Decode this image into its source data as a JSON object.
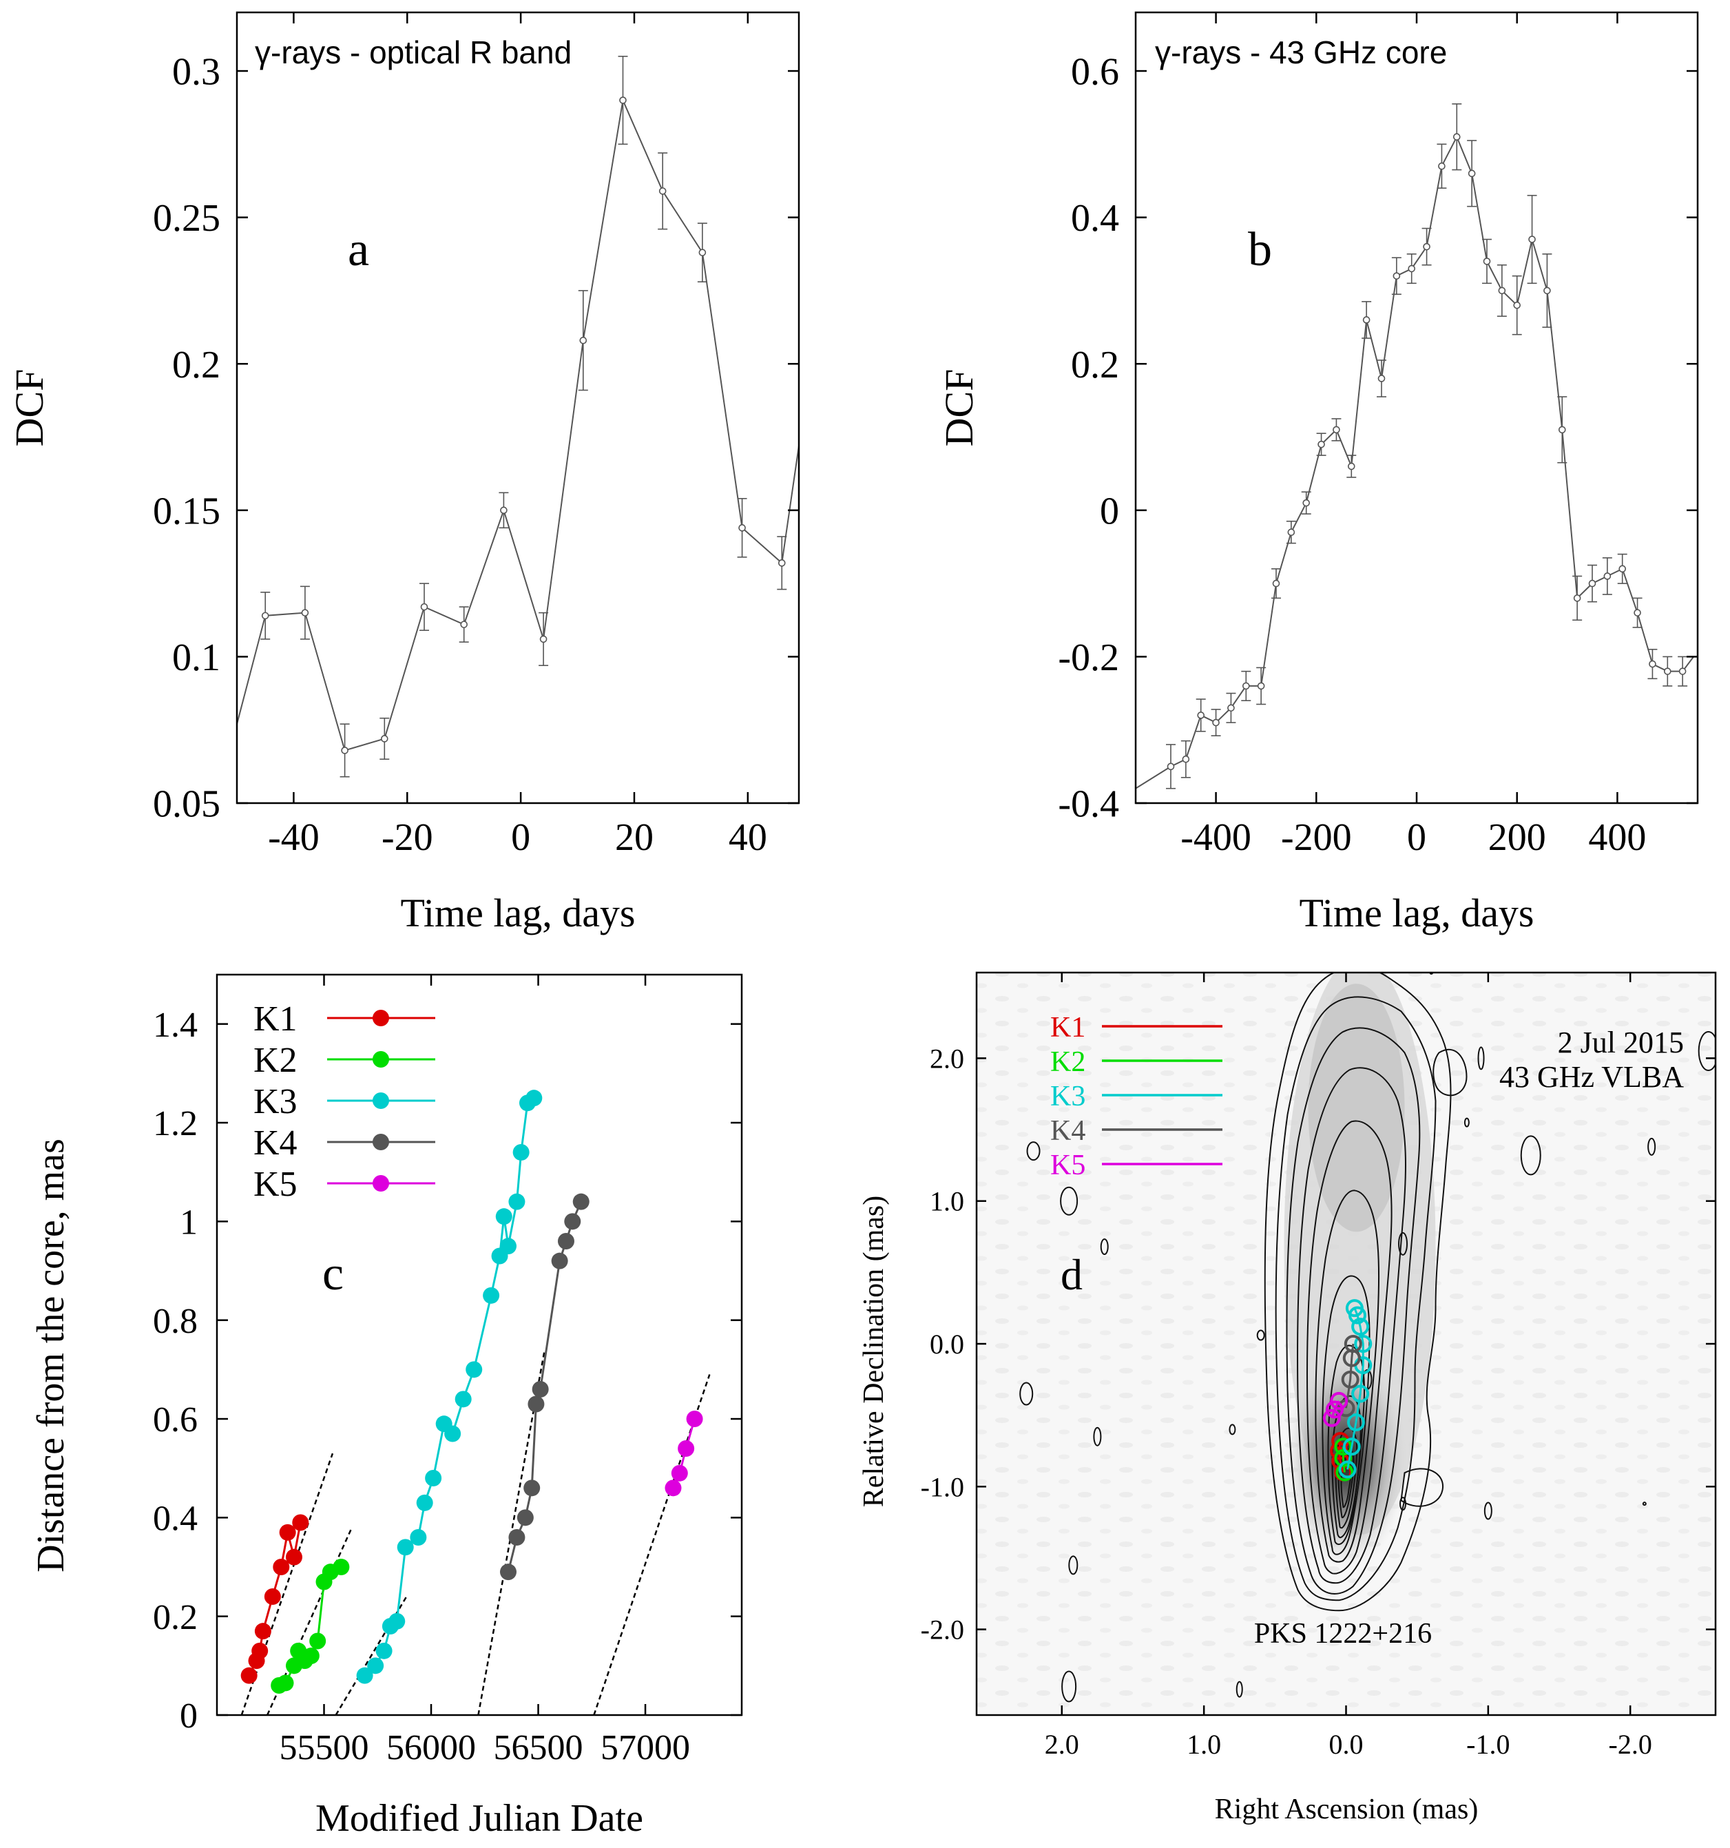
{
  "chart_data": [
    {
      "id": "a",
      "type": "line",
      "panel_letter": "a",
      "annotation": "γ-rays - optical R band",
      "xlabel": "Time lag, days",
      "ylabel": "DCF",
      "xlim": [
        -50,
        49
      ],
      "ylim": [
        0.05,
        0.32
      ],
      "xticks": [
        -40,
        -20,
        0,
        20,
        40
      ],
      "xtick_labels": [
        "-40",
        "-20",
        "0",
        "20",
        "40"
      ],
      "yticks": [
        0.05,
        0.1,
        0.15,
        0.2,
        0.25,
        0.3
      ],
      "ytick_labels": [
        "0.05",
        "0.1",
        "0.15",
        "0.2",
        "0.25",
        "0.3"
      ],
      "color": "#555555",
      "line_extension": {
        "start": [
          -50,
          0.077
        ],
        "end": [
          49,
          0.172
        ]
      },
      "x": [
        -45.0,
        -38.0,
        -31.0,
        -24.0,
        -17.0,
        -10.0,
        -3.0,
        4.0,
        11.0,
        18.0,
        25.0,
        32.0,
        39.0,
        46.0
      ],
      "y": [
        0.114,
        0.115,
        0.068,
        0.072,
        0.117,
        0.111,
        0.15,
        0.106,
        0.208,
        0.29,
        0.259,
        0.238,
        0.144,
        0.132
      ],
      "err": [
        0.008,
        0.009,
        0.009,
        0.007,
        0.008,
        0.006,
        0.006,
        0.009,
        0.017,
        0.015,
        0.013,
        0.01,
        0.01,
        0.009
      ]
    },
    {
      "id": "b",
      "type": "line",
      "panel_letter": "b",
      "annotation": "γ-rays - 43 GHz core",
      "xlabel": "Time lag, days",
      "ylabel": "DCF",
      "xlim": [
        -560,
        560
      ],
      "ylim": [
        -0.4,
        0.68
      ],
      "xticks": [
        -400,
        -200,
        0,
        200,
        400
      ],
      "xtick_labels": [
        "-400",
        "-200",
        "0",
        "200",
        "400"
      ],
      "yticks": [
        -0.4,
        -0.2,
        0,
        0.2,
        0.4,
        0.6
      ],
      "ytick_labels": [
        "-0.4",
        "-0.2",
        "0",
        "0.2",
        "0.4",
        "0.6"
      ],
      "color": "#555555",
      "line_extension": {
        "start": [
          -560,
          -0.38
        ],
        "end": [
          552,
          -0.2
        ]
      },
      "x": [
        -490,
        -460,
        -430,
        -400,
        -370,
        -340,
        -310,
        -280,
        -250,
        -220,
        -190,
        -160,
        -130,
        -100,
        -70,
        -40,
        -10,
        20,
        50,
        80,
        110,
        140,
        170,
        200,
        230,
        260,
        290,
        320,
        350,
        380,
        410,
        440,
        470,
        500,
        530
      ],
      "y": [
        -0.35,
        -0.34,
        -0.28,
        -0.29,
        -0.27,
        -0.24,
        -0.24,
        -0.1,
        -0.03,
        0.01,
        0.09,
        0.11,
        0.06,
        0.26,
        0.18,
        0.32,
        0.33,
        0.36,
        0.47,
        0.51,
        0.46,
        0.34,
        0.3,
        0.28,
        0.37,
        0.3,
        0.11,
        -0.12,
        -0.1,
        -0.09,
        -0.08,
        -0.14,
        -0.21,
        -0.22,
        -0.22
      ],
      "err": [
        0.03,
        0.025,
        0.022,
        0.018,
        0.02,
        0.02,
        0.025,
        0.02,
        0.015,
        0.015,
        0.015,
        0.015,
        0.015,
        0.025,
        0.025,
        0.025,
        0.02,
        0.025,
        0.03,
        0.045,
        0.045,
        0.03,
        0.035,
        0.04,
        0.06,
        0.05,
        0.045,
        0.03,
        0.025,
        0.025,
        0.02,
        0.02,
        0.02,
        0.02,
        0.02
      ]
    },
    {
      "id": "c",
      "type": "scatter",
      "panel_letter": "c",
      "xlabel": "Modified Julian Date",
      "ylabel": "Distance from the core, mas",
      "xlim": [
        55000,
        57450
      ],
      "ylim": [
        0,
        1.5
      ],
      "xticks": [
        55500,
        56000,
        56500,
        57000
      ],
      "xtick_labels": [
        "55500",
        "56000",
        "56500",
        "57000"
      ],
      "yticks": [
        0,
        0.2,
        0.4,
        0.6,
        0.8,
        1.0,
        1.2,
        1.4
      ],
      "ytick_labels": [
        "0",
        "0.2",
        "0.4",
        "0.6",
        "0.8",
        "1",
        "1.2",
        "1.4"
      ],
      "legend_position": "top-left",
      "series": [
        {
          "name": "K1",
          "color": "#dd0000",
          "x": [
            55150,
            55185,
            55200,
            55215,
            55260,
            55300,
            55330,
            55360,
            55390
          ],
          "y": [
            0.08,
            0.11,
            0.13,
            0.17,
            0.24,
            0.3,
            0.37,
            0.32,
            0.39
          ]
        },
        {
          "name": "K2",
          "color": "#00dd00",
          "x": [
            55290,
            55320,
            55360,
            55380,
            55410,
            55440,
            55470,
            55500,
            55530,
            55580
          ],
          "y": [
            0.06,
            0.065,
            0.1,
            0.13,
            0.11,
            0.12,
            0.15,
            0.27,
            0.29,
            0.3
          ]
        },
        {
          "name": "K3",
          "color": "#00cccc",
          "x": [
            55690,
            55740,
            55780,
            55810,
            55840,
            55880,
            55940,
            55970,
            56010,
            56060,
            56100,
            56150,
            56200,
            56280,
            56320,
            56340,
            56360,
            56400,
            56420,
            56450,
            56480
          ],
          "y": [
            0.08,
            0.1,
            0.13,
            0.18,
            0.19,
            0.34,
            0.36,
            0.43,
            0.48,
            0.59,
            0.57,
            0.64,
            0.7,
            0.85,
            0.93,
            1.01,
            0.95,
            1.04,
            1.14,
            1.24,
            1.25
          ]
        },
        {
          "name": "K4",
          "color": "#555555",
          "x": [
            56360,
            56400,
            56440,
            56470,
            56490,
            56510,
            56600,
            56630,
            56660,
            56700
          ],
          "y": [
            0.29,
            0.36,
            0.4,
            0.46,
            0.63,
            0.66,
            0.92,
            0.96,
            1.0,
            1.04
          ]
        },
        {
          "name": "K5",
          "color": "#dd00dd",
          "x": [
            57130,
            57160,
            57190,
            57230
          ],
          "y": [
            0.46,
            0.49,
            0.54,
            0.6
          ]
        }
      ],
      "fit_lines": [
        {
          "x": [
            55115,
            55540
          ],
          "y": [
            0.0,
            0.53
          ]
        },
        {
          "x": [
            55235,
            55630
          ],
          "y": [
            0.0,
            0.38
          ]
        },
        {
          "x": [
            55555,
            55885
          ],
          "y": [
            0.0,
            0.24
          ]
        },
        {
          "x": [
            56220,
            56530
          ],
          "y": [
            0.0,
            0.74
          ]
        },
        {
          "x": [
            56760,
            57300
          ],
          "y": [
            0.0,
            0.69
          ]
        }
      ]
    },
    {
      "id": "d",
      "type": "contour",
      "panel_letter": "d",
      "xlabel": "Right Ascension (mas)",
      "ylabel": "Relative Declination (mas)",
      "xlim": [
        2.6,
        -2.6
      ],
      "ylim": [
        -2.6,
        2.6
      ],
      "xticks": [
        2.0,
        1.0,
        0.0,
        -1.0,
        -2.0
      ],
      "xtick_labels": [
        "2.0",
        "1.0",
        "0.0",
        "-1.0",
        "-2.0"
      ],
      "yticks": [
        2.0,
        1.0,
        0.0,
        -1.0,
        -2.0
      ],
      "ytick_labels": [
        "2.0",
        "1.0",
        "0.0",
        "-1.0",
        "-2.0"
      ],
      "date_label": "2 Jul 2015",
      "instrument_label": "43 GHz VLBA",
      "source_label": "PKS 1222+216",
      "legend_position": "top-left",
      "core": [
        0.0,
        -1.0
      ],
      "legend": [
        {
          "name": "K1",
          "color": "#dd0000"
        },
        {
          "name": "K2",
          "color": "#00dd00"
        },
        {
          "name": "K3",
          "color": "#00cccc"
        },
        {
          "name": "K4",
          "color": "#555555"
        },
        {
          "name": "K5",
          "color": "#dd00dd"
        }
      ],
      "components": [
        {
          "name": "K1",
          "color": "#dd0000",
          "ra": [
            0.02,
            0.04,
            0.05,
            0.04
          ],
          "dec": [
            -0.9,
            -0.82,
            -0.75,
            -0.68
          ]
        },
        {
          "name": "K2",
          "color": "#00dd00",
          "ra": [
            0.01,
            0.02,
            0.02
          ],
          "dec": [
            -0.9,
            -0.8,
            -0.72
          ]
        },
        {
          "name": "K3",
          "color": "#00cccc",
          "ra": [
            -0.01,
            -0.04,
            -0.07,
            -0.1,
            -0.12,
            -0.12,
            -0.1,
            -0.08,
            -0.06
          ],
          "dec": [
            -0.88,
            -0.72,
            -0.55,
            -0.35,
            -0.15,
            0.0,
            0.12,
            0.2,
            0.25
          ]
        },
        {
          "name": "K4",
          "color": "#555555",
          "ra": [
            0.0,
            -0.03,
            -0.04,
            -0.05
          ],
          "dec": [
            -0.45,
            -0.25,
            -0.1,
            0.0
          ]
        },
        {
          "name": "K5",
          "color": "#dd00dd",
          "ra": [
            0.1,
            0.08,
            0.05
          ],
          "dec": [
            -0.52,
            -0.46,
            -0.4
          ]
        }
      ]
    }
  ]
}
